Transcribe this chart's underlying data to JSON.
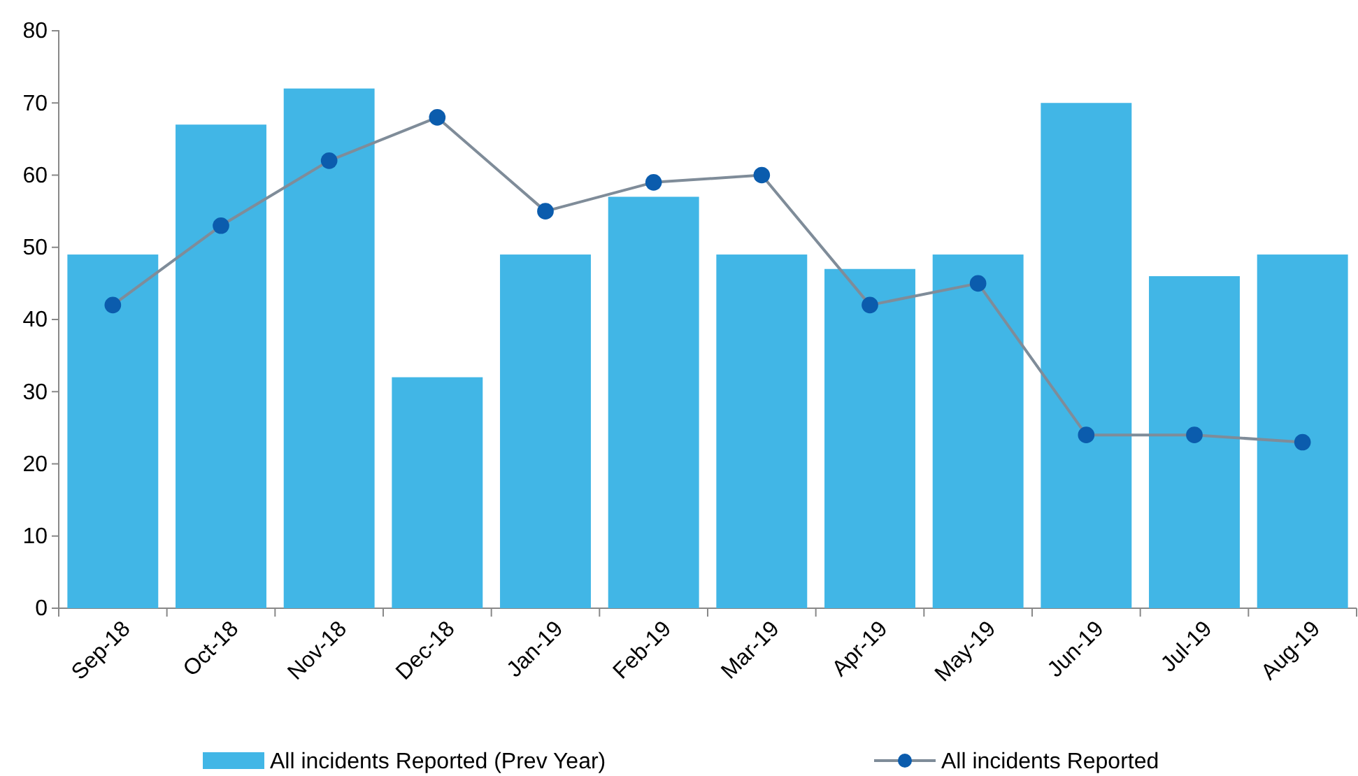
{
  "chart_data": {
    "type": "bar",
    "categories": [
      "Sep-18",
      "Oct-18",
      "Nov-18",
      "Dec-18",
      "Jan-19",
      "Feb-19",
      "Mar-19",
      "Apr-19",
      "May-19",
      "Jun-19",
      "Jul-19",
      "Aug-19"
    ],
    "series": [
      {
        "name": "All incidents Reported (Prev Year)",
        "color": "#41b6e6",
        "values": [
          49,
          67,
          72,
          32,
          49,
          57,
          49,
          47,
          49,
          70,
          46,
          49
        ]
      },
      {
        "name": "All incidents Reported",
        "type": "line",
        "color": "#0b5cad",
        "values": [
          42,
          53,
          62,
          68,
          55,
          59,
          60,
          42,
          45,
          24,
          24,
          23
        ]
      }
    ],
    "ylim": [
      0,
      80
    ],
    "yticks": [
      0,
      10,
      20,
      30,
      40,
      50,
      60,
      70,
      80
    ],
    "grid": false,
    "legend": "bottom",
    "marker": "circle",
    "line_style": "solid"
  }
}
